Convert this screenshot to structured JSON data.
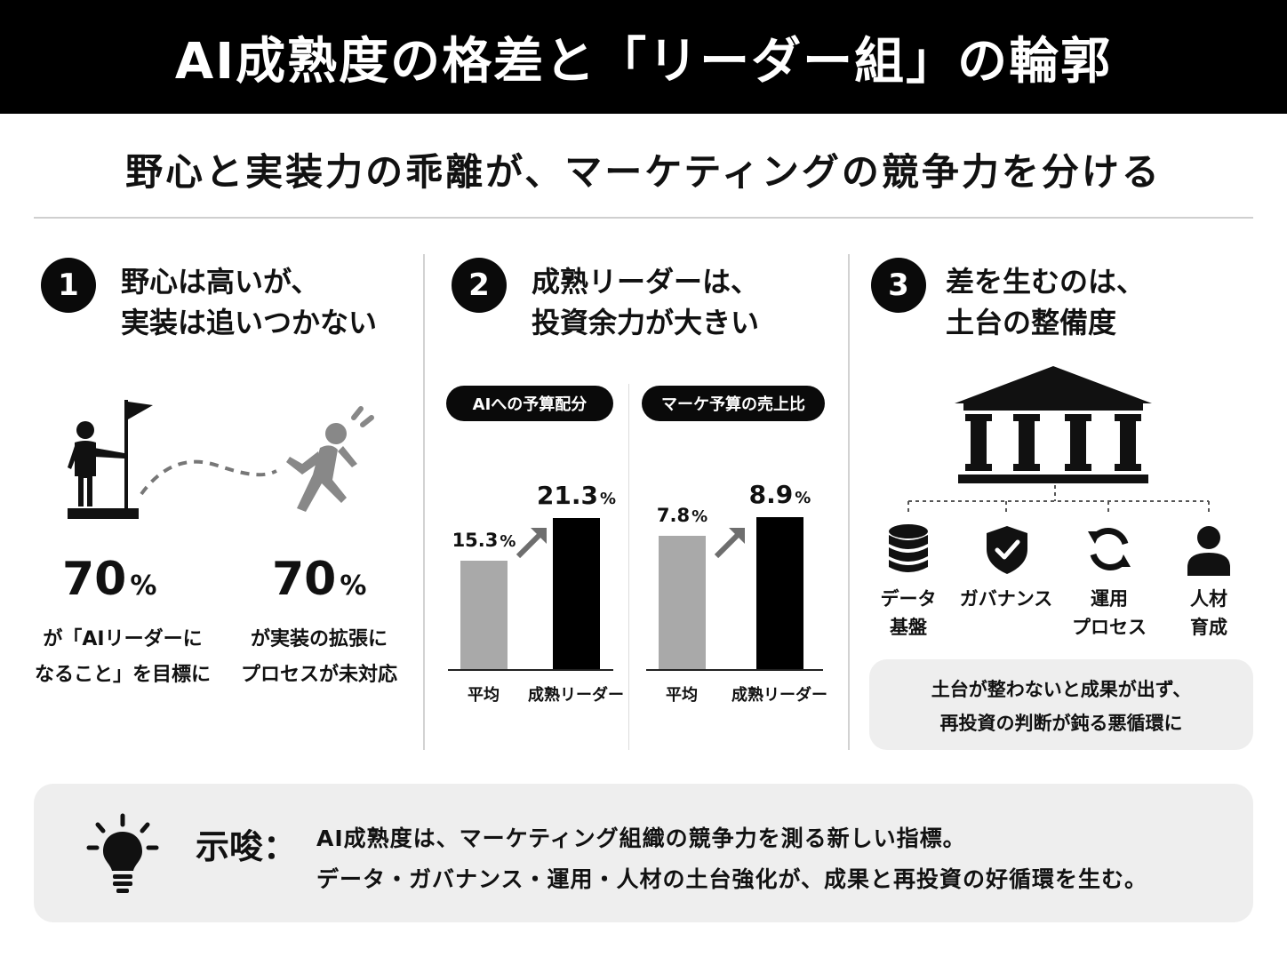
{
  "title": "AI成熟度の格差と「リーダー組」の輪郭",
  "subtitle": "野心と実装力の乖離が、マーケティングの競争力を分ける",
  "section1": {
    "number": "1",
    "title_line1": "野心は高いが、",
    "title_line2": "実装は追いつかない",
    "stat_left": {
      "value": "70",
      "unit": "%",
      "caption_line1": "が「AIリーダーに",
      "caption_line2": "なること」を目標に"
    },
    "stat_right": {
      "value": "70",
      "unit": "%",
      "caption_line1": "が実装の拡張に",
      "caption_line2": "プロセスが未対応"
    },
    "icons": [
      "person-with-flag-icon",
      "running-person-icon"
    ]
  },
  "section2": {
    "number": "2",
    "title_line1": "成熟リーダーは、",
    "title_line2": "投資余力が大きい"
  },
  "section3": {
    "number": "3",
    "title_line1": "差を生むのは、",
    "title_line2": "土台の整備度",
    "foundation_items": [
      {
        "icon": "database-icon",
        "label_line1": "データ",
        "label_line2": "基盤"
      },
      {
        "icon": "shield-check-icon",
        "label_line1": "ガバナンス",
        "label_line2": ""
      },
      {
        "icon": "cycle-arrows-icon",
        "label_line1": "運用",
        "label_line2": "プロセス"
      },
      {
        "icon": "person-icon",
        "label_line1": "人材",
        "label_line2": "育成"
      }
    ],
    "note_line1": "土台が整わないと成果が出ず、",
    "note_line2": "再投資の判断が鈍る悪循環に"
  },
  "chart_data": [
    {
      "type": "bar",
      "title": "AIへの予算配分",
      "categories": [
        "平均",
        "成熟リーダー"
      ],
      "values": [
        15.3,
        21.3
      ],
      "value_labels": [
        "15.3",
        "21.3"
      ],
      "unit": "%",
      "colors": [
        "#a9a9a9",
        "#000000"
      ],
      "ylim": [
        0,
        25
      ]
    },
    {
      "type": "bar",
      "title": "マーケ予算の売上比",
      "categories": [
        "平均",
        "成熟リーダー"
      ],
      "values": [
        7.8,
        8.9
      ],
      "value_labels": [
        "7.8",
        "8.9"
      ],
      "unit": "%",
      "colors": [
        "#a9a9a9",
        "#000000"
      ],
      "ylim": [
        0,
        10.4
      ]
    }
  ],
  "implication": {
    "label": "示唆：",
    "icon": "lightbulb-icon",
    "line1": "AI成熟度は、マーケティング組織の競争力を測る新しい指標。",
    "line2": "データ・ガバナンス・運用・人材の土台強化が、成果と再投資の好循環を生む。"
  }
}
